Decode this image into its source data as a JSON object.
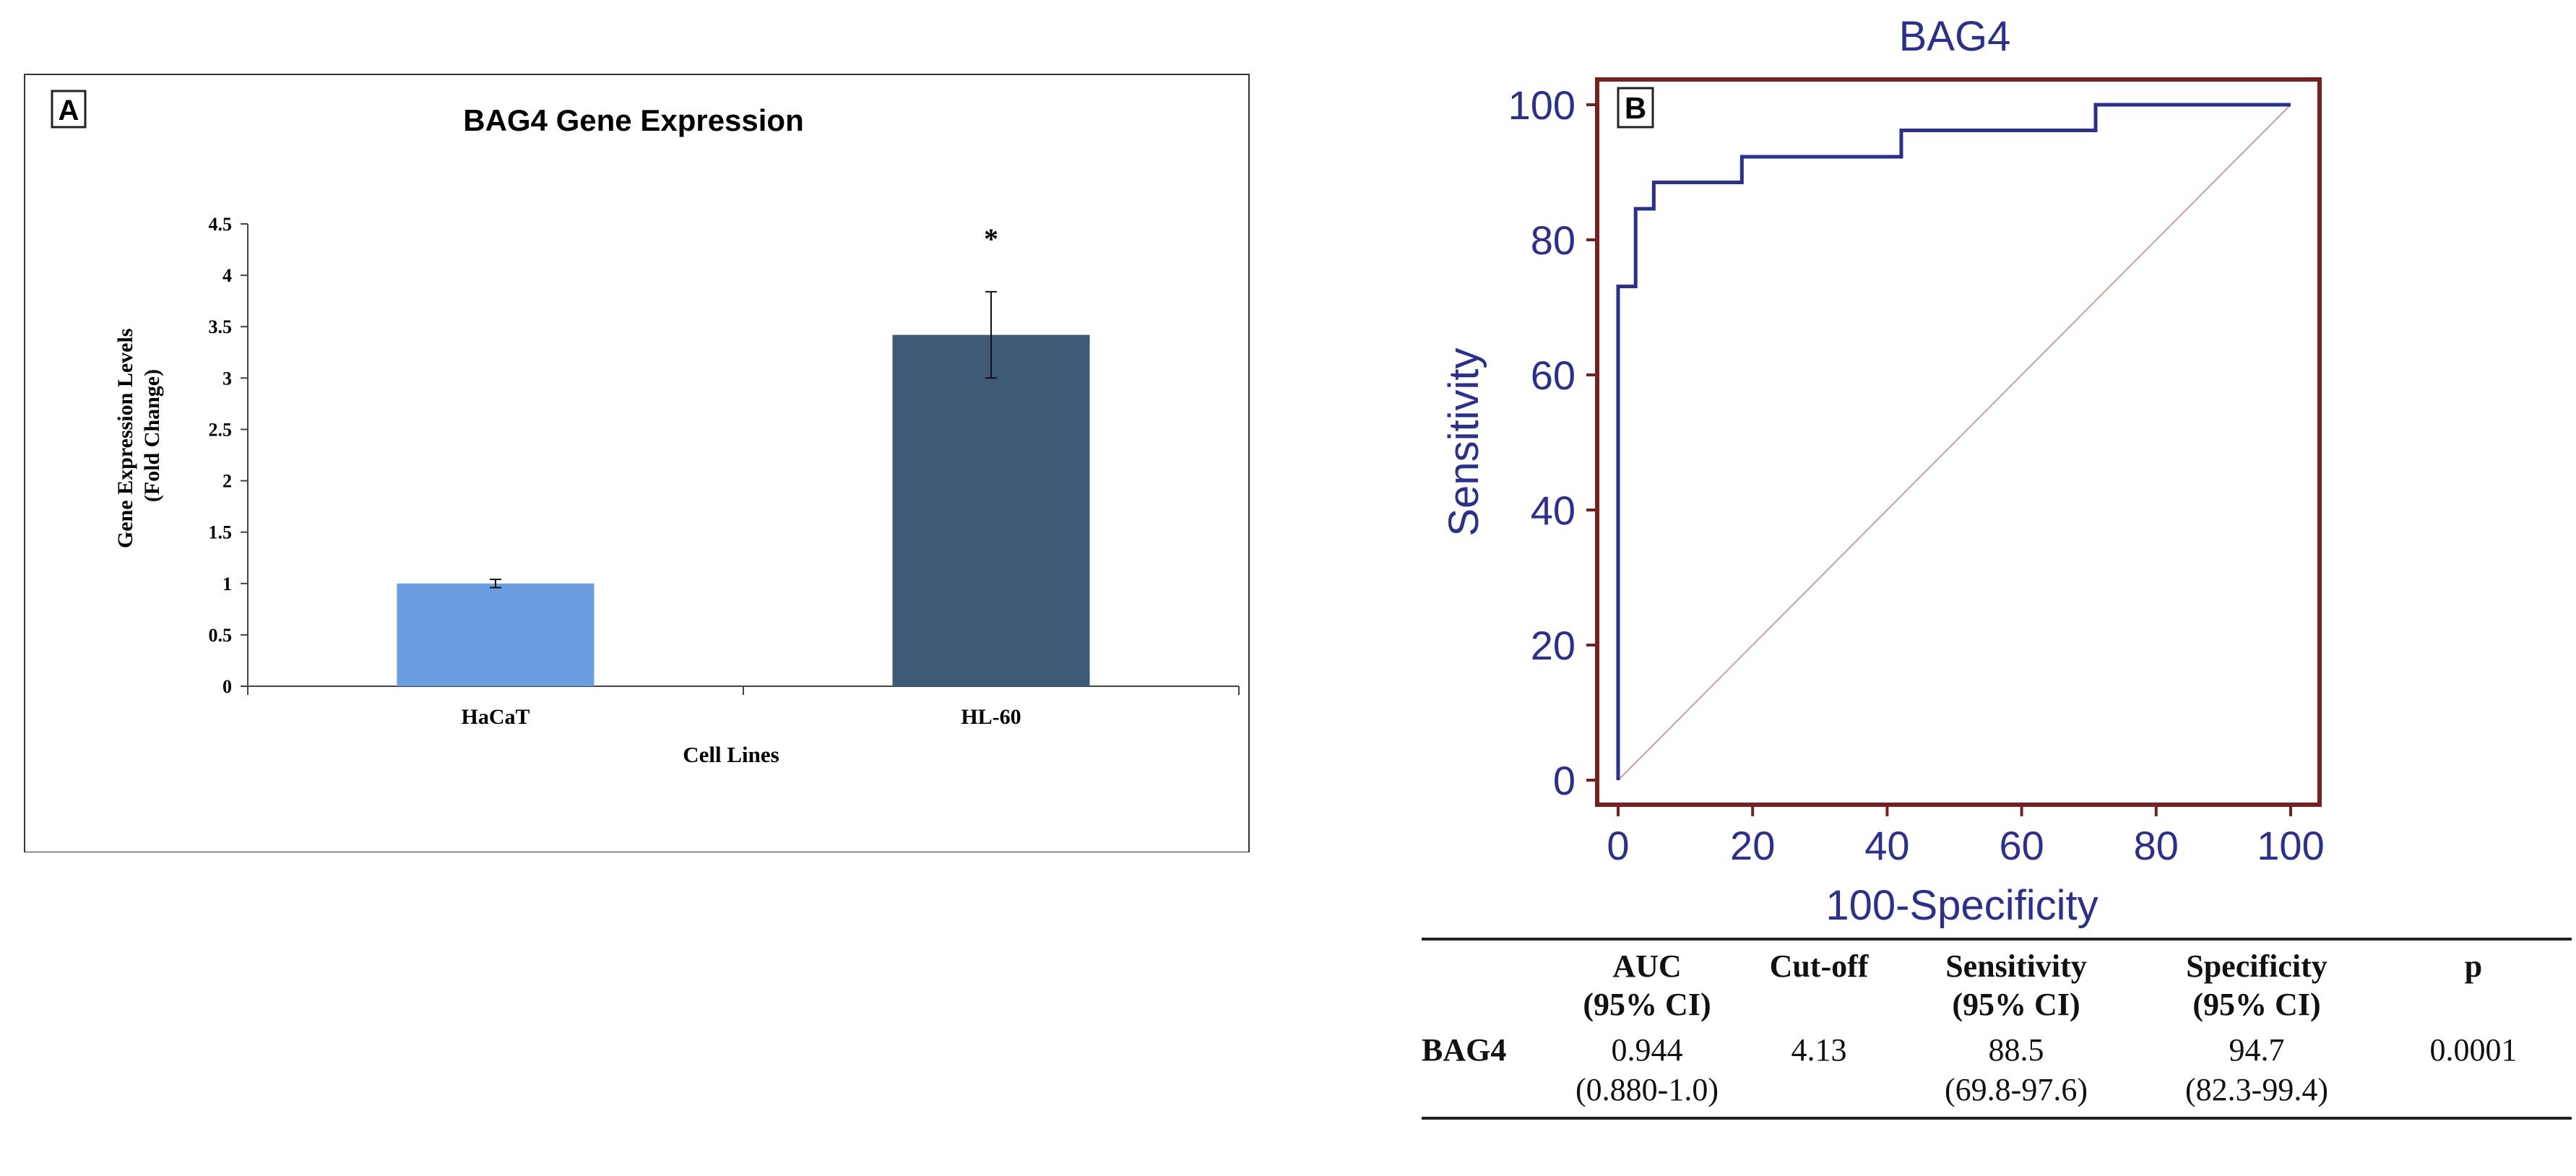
{
  "chart_data": [
    {
      "type": "bar",
      "panel_label": "A",
      "title": "BAG4  Gene Expression",
      "xlabel": "Cell Lines",
      "ylabel": [
        "Gene Expression Levels",
        "(Fold Change)"
      ],
      "categories": [
        "HaCaT",
        "HL-60"
      ],
      "values": [
        1.0,
        3.42
      ],
      "errors": [
        0.04,
        0.42
      ],
      "colors": [
        "#6a9ee0",
        "#3f5a77"
      ],
      "annotations": [
        "",
        "*"
      ],
      "ylim": [
        0,
        4.5
      ],
      "yticks": [
        "0",
        "0.5",
        "1",
        "1.5",
        "2",
        "2.5",
        "3",
        "3.5",
        "4",
        "4.5"
      ]
    },
    {
      "type": "line",
      "panel_label": "B",
      "title": "BAG4",
      "xlabel": "100-Specificity",
      "ylabel": "Sensitivity",
      "xlim": [
        0,
        100
      ],
      "ylim": [
        0,
        100
      ],
      "xticks": [
        "0",
        "20",
        "40",
        "60",
        "80",
        "100"
      ],
      "yticks": [
        "0",
        "20",
        "40",
        "60",
        "80",
        "100"
      ],
      "colors": {
        "roc": "#2b2f8f",
        "frame": "#7a1f1f",
        "diagonal": "#c9a0a0",
        "axis_text": "#2b2f8f"
      },
      "series": [
        {
          "name": "ROC curve",
          "x": [
            0,
            0,
            2.6,
            2.6,
            5.3,
            5.3,
            18.4,
            18.4,
            42.1,
            42.1,
            71.0,
            71.0,
            100
          ],
          "y": [
            0,
            73.1,
            73.1,
            84.6,
            84.6,
            88.5,
            88.5,
            92.3,
            92.3,
            96.2,
            96.2,
            100,
            100
          ]
        },
        {
          "name": "Reference line",
          "x": [
            0,
            100
          ],
          "y": [
            0,
            100
          ]
        }
      ]
    }
  ],
  "table": {
    "headers": [
      {
        "line1": "",
        "line2": ""
      },
      {
        "line1": "AUC",
        "line2": "(95% CI)"
      },
      {
        "line1": "Cut-off",
        "line2": ""
      },
      {
        "line1": "Sensitivity",
        "line2": "(95% CI)"
      },
      {
        "line1": "Specificity",
        "line2": "(95% CI)"
      },
      {
        "line1": "p",
        "line2": ""
      }
    ],
    "row": {
      "label": "BAG4",
      "auc": "0.944",
      "auc_ci": "(0.880-1.0)",
      "cutoff": "4.13",
      "sensitivity": "88.5",
      "sensitivity_ci": "(69.8-97.6)",
      "specificity": "94.7",
      "specificity_ci": "(82.3-99.4)",
      "p": "0.0001"
    }
  }
}
